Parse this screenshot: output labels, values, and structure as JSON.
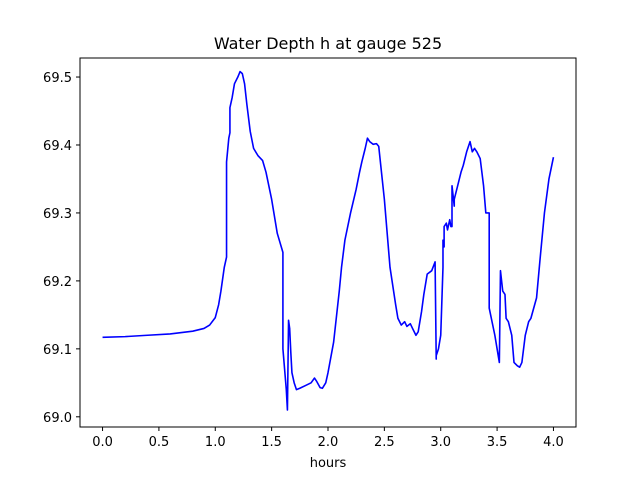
{
  "chart_data": {
    "type": "line",
    "title": "Water Depth h at gauge 525",
    "xlabel": "hours",
    "ylabel": "",
    "xlim": [
      -0.2,
      4.2
    ],
    "ylim": [
      68.985,
      69.528
    ],
    "grid": false,
    "xticks": [
      0.0,
      0.5,
      1.0,
      1.5,
      2.0,
      2.5,
      3.0,
      3.5,
      4.0
    ],
    "xtick_labels": [
      "0.0",
      "0.5",
      "1.0",
      "1.5",
      "2.0",
      "2.5",
      "3.0",
      "3.5",
      "4.0"
    ],
    "yticks": [
      69.0,
      69.1,
      69.2,
      69.3,
      69.4,
      69.5
    ],
    "ytick_labels": [
      "69.0",
      "69.1",
      "69.2",
      "69.3",
      "69.4",
      "69.5"
    ],
    "series": [
      {
        "color": "#0000ff",
        "x": [
          0.0,
          0.2,
          0.4,
          0.6,
          0.7,
          0.8,
          0.9,
          0.95,
          1.0,
          1.03,
          1.05,
          1.08,
          1.1,
          1.1,
          1.12,
          1.13,
          1.13,
          1.15,
          1.17,
          1.2,
          1.22,
          1.24,
          1.26,
          1.28,
          1.31,
          1.34,
          1.38,
          1.42,
          1.45,
          1.5,
          1.55,
          1.6,
          1.6,
          1.63,
          1.64,
          1.65,
          1.66,
          1.67,
          1.68,
          1.7,
          1.72,
          1.75,
          1.8,
          1.85,
          1.88,
          1.9,
          1.93,
          1.95,
          1.98,
          2.0,
          2.05,
          2.1,
          2.12,
          2.15,
          2.2,
          2.25,
          2.28,
          2.3,
          2.33,
          2.35,
          2.37,
          2.4,
          2.43,
          2.45,
          2.5,
          2.55,
          2.6,
          2.62,
          2.65,
          2.68,
          2.7,
          2.73,
          2.75,
          2.78,
          2.8,
          2.83,
          2.85,
          2.88,
          2.92,
          2.95,
          2.96,
          2.96,
          2.98,
          3.0,
          3.02,
          3.02,
          3.03,
          3.03,
          3.05,
          3.06,
          3.08,
          3.09,
          3.1,
          3.1,
          3.12,
          3.12,
          3.15,
          3.18,
          3.2,
          3.23,
          3.26,
          3.28,
          3.3,
          3.32,
          3.35,
          3.38,
          3.4,
          3.43,
          3.43,
          3.48,
          3.52,
          3.53,
          3.55,
          3.57,
          3.58,
          3.6,
          3.63,
          3.65,
          3.68,
          3.7,
          3.72,
          3.75,
          3.78,
          3.8,
          3.85,
          3.88,
          3.92,
          3.96,
          4.0
        ],
        "y": [
          69.117,
          69.118,
          69.12,
          69.122,
          69.124,
          69.126,
          69.13,
          69.135,
          69.146,
          69.165,
          69.185,
          69.22,
          69.235,
          69.375,
          69.41,
          69.418,
          69.455,
          69.47,
          69.49,
          69.5,
          69.508,
          69.505,
          69.49,
          69.46,
          69.42,
          69.395,
          69.384,
          69.377,
          69.36,
          69.32,
          69.27,
          69.242,
          69.1,
          69.04,
          69.01,
          69.142,
          69.13,
          69.095,
          69.065,
          69.05,
          69.04,
          69.042,
          69.046,
          69.05,
          69.057,
          69.052,
          69.043,
          69.042,
          69.05,
          69.065,
          69.11,
          69.185,
          69.22,
          69.26,
          69.3,
          69.335,
          69.36,
          69.375,
          69.395,
          69.41,
          69.405,
          69.401,
          69.402,
          69.398,
          69.32,
          69.22,
          69.165,
          69.145,
          69.135,
          69.14,
          69.133,
          69.137,
          69.13,
          69.12,
          69.125,
          69.155,
          69.18,
          69.21,
          69.215,
          69.228,
          69.085,
          69.09,
          69.1,
          69.12,
          69.22,
          69.26,
          69.25,
          69.28,
          69.285,
          69.275,
          69.29,
          69.28,
          69.28,
          69.34,
          69.31,
          69.32,
          69.34,
          69.36,
          69.37,
          69.39,
          69.405,
          69.39,
          69.395,
          69.39,
          69.38,
          69.34,
          69.3,
          69.3,
          69.16,
          69.12,
          69.08,
          69.215,
          69.185,
          69.18,
          69.145,
          69.14,
          69.12,
          69.08,
          69.075,
          69.073,
          69.08,
          69.12,
          69.14,
          69.145,
          69.175,
          69.23,
          69.3,
          69.35,
          69.382
        ]
      }
    ]
  }
}
